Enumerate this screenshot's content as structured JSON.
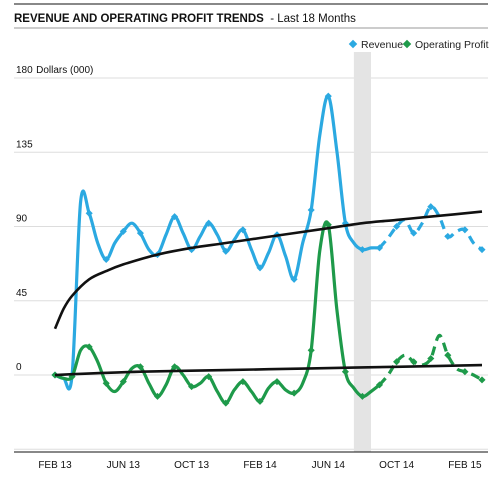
{
  "chart_data": {
    "type": "line",
    "title": "REVENUE AND OPERATING PROFIT TRENDS",
    "subtitle": "- Last 18 Months",
    "ylabel": "Dollars (000)",
    "ylim": [
      -45,
      180
    ],
    "y_ticks": [
      "180",
      "135",
      "90",
      "45",
      "0"
    ],
    "y_tick_values": [
      180,
      135,
      90,
      45,
      0
    ],
    "x_ticks": [
      {
        "label": "FEB 13",
        "x": 0
      },
      {
        "label": "JUN 13",
        "x": 4
      },
      {
        "label": "OCT 13",
        "x": 8
      },
      {
        "label": "FEB 14",
        "x": 12
      },
      {
        "label": "JUN 14",
        "x": 16
      },
      {
        "label": "OCT 14",
        "x": 20
      },
      {
        "label": "FEB 15",
        "x": 24
      }
    ],
    "highlight_x": [
      17.5,
      18.5
    ],
    "grid": "horizontal",
    "legend_position": "top-right",
    "series": [
      {
        "name": "Revenue",
        "color": "#2BA9E1",
        "actual_end": 19,
        "points": [
          [
            0,
            0
          ],
          [
            0.5,
            -2
          ],
          [
            1,
            0
          ],
          [
            1.5,
            105
          ],
          [
            2,
            98
          ],
          [
            2.5,
            80
          ],
          [
            3,
            70
          ],
          [
            3.5,
            80
          ],
          [
            4,
            87
          ],
          [
            4.5,
            92
          ],
          [
            5,
            86
          ],
          [
            5.5,
            76
          ],
          [
            6,
            73
          ],
          [
            6.5,
            85
          ],
          [
            7,
            96
          ],
          [
            7.5,
            86
          ],
          [
            8,
            76
          ],
          [
            8.5,
            84
          ],
          [
            9,
            92
          ],
          [
            9.5,
            85
          ],
          [
            10,
            75
          ],
          [
            10.5,
            82
          ],
          [
            11,
            88
          ],
          [
            11.5,
            76
          ],
          [
            12,
            65
          ],
          [
            12.5,
            74
          ],
          [
            13,
            85
          ],
          [
            13.5,
            72
          ],
          [
            14,
            58
          ],
          [
            14.5,
            80
          ],
          [
            15,
            100
          ],
          [
            15.5,
            145
          ],
          [
            16,
            169
          ],
          [
            16.5,
            136
          ],
          [
            17,
            92
          ],
          [
            17.5,
            80
          ],
          [
            18,
            76
          ],
          [
            18.5,
            77
          ],
          [
            19,
            77
          ],
          [
            19.5,
            83
          ],
          [
            20,
            90
          ],
          [
            20.5,
            94
          ],
          [
            21,
            86
          ],
          [
            21.5,
            92
          ],
          [
            22,
            102
          ],
          [
            22.5,
            96
          ],
          [
            23,
            84
          ],
          [
            23.5,
            87
          ],
          [
            24,
            88
          ],
          [
            24.5,
            80
          ],
          [
            25,
            76
          ]
        ],
        "trend": [
          [
            0,
            28
          ],
          [
            0.5,
            40
          ],
          [
            1,
            48
          ],
          [
            2,
            58
          ],
          [
            3,
            63
          ],
          [
            4,
            67
          ],
          [
            6,
            73
          ],
          [
            8,
            77
          ],
          [
            10,
            80
          ],
          [
            12,
            83
          ],
          [
            14,
            86
          ],
          [
            16,
            89
          ],
          [
            18,
            92
          ],
          [
            20,
            94
          ],
          [
            22,
            96
          ],
          [
            25,
            99
          ]
        ]
      },
      {
        "name": "Operating Profit",
        "color": "#1E9A4A",
        "actual_end": 19,
        "points": [
          [
            0,
            0
          ],
          [
            0.5,
            -2
          ],
          [
            1,
            -1
          ],
          [
            1.5,
            15
          ],
          [
            2,
            17
          ],
          [
            2.5,
            8
          ],
          [
            3,
            -5
          ],
          [
            3.5,
            -10
          ],
          [
            4,
            -4
          ],
          [
            4.5,
            4
          ],
          [
            5,
            5
          ],
          [
            5.5,
            -5
          ],
          [
            6,
            -13
          ],
          [
            6.5,
            -6
          ],
          [
            7,
            5
          ],
          [
            7.5,
            0
          ],
          [
            8,
            -7
          ],
          [
            8.5,
            -5
          ],
          [
            9,
            -1
          ],
          [
            9.5,
            -10
          ],
          [
            10,
            -17
          ],
          [
            10.5,
            -9
          ],
          [
            11,
            -4
          ],
          [
            11.5,
            -10
          ],
          [
            12,
            -16
          ],
          [
            12.5,
            -8
          ],
          [
            13,
            -4
          ],
          [
            13.5,
            -9
          ],
          [
            14,
            -11
          ],
          [
            14.5,
            -5
          ],
          [
            15,
            15
          ],
          [
            15.5,
            75
          ],
          [
            16,
            91
          ],
          [
            16.5,
            40
          ],
          [
            17,
            2
          ],
          [
            17.5,
            -8
          ],
          [
            18,
            -13
          ],
          [
            18.5,
            -10
          ],
          [
            19,
            -6
          ],
          [
            19.5,
            0
          ],
          [
            20,
            8
          ],
          [
            20.5,
            12
          ],
          [
            21,
            8
          ],
          [
            21.5,
            6
          ],
          [
            22,
            10
          ],
          [
            22.5,
            24
          ],
          [
            23,
            12
          ],
          [
            23.5,
            4
          ],
          [
            24,
            2
          ],
          [
            24.5,
            0
          ],
          [
            25,
            -3
          ]
        ],
        "trend": [
          [
            0,
            0
          ],
          [
            5,
            2
          ],
          [
            10,
            3
          ],
          [
            15,
            4
          ],
          [
            20,
            5
          ],
          [
            25,
            6
          ]
        ]
      }
    ]
  }
}
